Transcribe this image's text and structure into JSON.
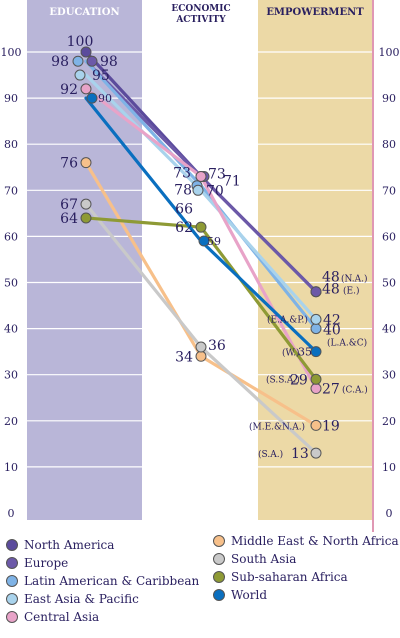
{
  "chart_data": {
    "type": "line",
    "categories": [
      "EDUCATION",
      "ECONOMIC ACTIVITY",
      "EMPOWERMENT"
    ],
    "header_lines": {
      "education": [
        "EDUCATION"
      ],
      "economic": [
        "ECONOMIC",
        "ACTIVITY"
      ],
      "empowerment": [
        "EMPOWERMENT"
      ]
    },
    "ylim": [
      0,
      100
    ],
    "yticks": [
      0,
      10,
      20,
      30,
      40,
      50,
      60,
      70,
      80,
      90,
      100
    ],
    "ytick_labels": [
      "0",
      "10",
      "20",
      "30",
      "40",
      "50",
      "60",
      "70",
      "80",
      "90",
      "100"
    ],
    "grid": true,
    "legend_position": "bottom",
    "colors": {
      "education_band": "#b9b6d8",
      "empowerment_band": "#ecd9a6",
      "header_text": "#ffffff",
      "axis_text": "#2a2060",
      "label_text": "#2a2060",
      "grid": "#ffffff",
      "right_border": "#c0306a"
    },
    "series": [
      {
        "name": "North America",
        "color": "#5b4b9c",
        "values": [
          100,
          73,
          48
        ],
        "labels": [
          "100",
          "73",
          "48"
        ],
        "empowerment_tag": "(N.A.)"
      },
      {
        "name": "Europe",
        "color": "#6c59a8",
        "values": [
          98,
          73,
          48
        ],
        "labels": [
          "98",
          "73",
          "48"
        ],
        "empowerment_tag": "(E.)"
      },
      {
        "name": "Latin American & Caribbean",
        "color": "#7fb3e6",
        "values": [
          98,
          71,
          40
        ],
        "labels": [
          "98",
          "71",
          "40"
        ],
        "empowerment_tag": "(L.A.&C)"
      },
      {
        "name": "East Asia & Pacific",
        "color": "#a9d3ec",
        "values": [
          95,
          70,
          42
        ],
        "labels": [
          "95",
          "70",
          "42"
        ],
        "empowerment_tag": "(E.A.&P.)"
      },
      {
        "name": "Central Asia",
        "color": "#e8a3c8",
        "values": [
          92,
          73,
          27
        ],
        "labels": [
          "92",
          "73",
          "27"
        ],
        "empowerment_tag": "(C.A.)"
      },
      {
        "name": "Middle East & North Africa",
        "color": "#f7c08a",
        "values": [
          76,
          34,
          19
        ],
        "labels": [
          "76",
          "34",
          "19"
        ],
        "empowerment_tag": "(M.E.&N.A.)"
      },
      {
        "name": "South Asia",
        "color": "#c9c9c9",
        "values": [
          67,
          36,
          13
        ],
        "labels": [
          "67",
          "36",
          "13"
        ],
        "empowerment_tag": "(S.A.)"
      },
      {
        "name": "Sub-saharan Africa",
        "color": "#8e9a35",
        "values": [
          64,
          62,
          29
        ],
        "labels": [
          "64",
          "62",
          "29"
        ],
        "empowerment_tag": "(S.S.A.)"
      },
      {
        "name": "World",
        "color": "#0a6fbf",
        "values": [
          90,
          59,
          35
        ],
        "labels": [
          "90",
          "59",
          "35"
        ],
        "empowerment_tag": "(W.)"
      }
    ]
  },
  "legend": {
    "items": [
      {
        "label": "North America",
        "color": "#5b4b9c"
      },
      {
        "label": "Europe",
        "color": "#6c59a8"
      },
      {
        "label": "Latin American & Caribbean",
        "color": "#7fb3e6"
      },
      {
        "label": "East Asia & Pacific",
        "color": "#a9d3ec"
      },
      {
        "label": "Central Asia",
        "color": "#e8a3c8"
      },
      {
        "label": "Middle East & North Africa",
        "color": "#f7c08a"
      },
      {
        "label": "South Asia",
        "color": "#c9c9c9"
      },
      {
        "label": "Sub-saharan Africa",
        "color": "#8e9a35"
      },
      {
        "label": "World",
        "color": "#0a6fbf"
      }
    ]
  }
}
